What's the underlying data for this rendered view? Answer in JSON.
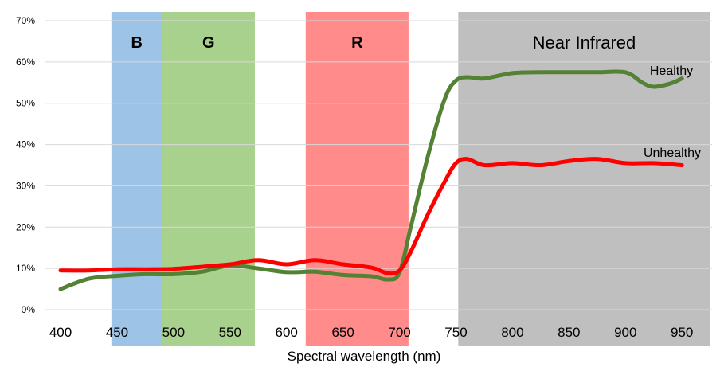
{
  "chart_data": {
    "type": "line",
    "title": "",
    "xlabel": "Spectral wavelength (nm)",
    "ylabel": "",
    "xlim": [
      380,
      965
    ],
    "ylim": [
      0,
      70
    ],
    "grid": true,
    "y_ticks": [
      "0%",
      "10%",
      "20%",
      "30%",
      "40%",
      "50%",
      "60%",
      "70%"
    ],
    "y_tick_values": [
      0,
      10,
      20,
      30,
      40,
      50,
      60,
      70
    ],
    "x_ticks": [
      "400",
      "450",
      "500",
      "550",
      "600",
      "650",
      "700",
      "750",
      "800",
      "850",
      "900",
      "950"
    ],
    "x_tick_values": [
      400,
      450,
      500,
      550,
      600,
      650,
      700,
      750,
      800,
      850,
      900,
      950
    ],
    "bands": [
      {
        "label": "B",
        "start": 445,
        "end": 490,
        "color": "#9dc3e6"
      },
      {
        "label": "G",
        "start": 490,
        "end": 572,
        "color": "#a9d18e"
      },
      {
        "label": "R",
        "start": 617,
        "end": 708,
        "color": "#ff8b8b"
      },
      {
        "label": "Near Infrared",
        "start": 752,
        "end": 975,
        "color": "#bfbfbf"
      }
    ],
    "series": [
      {
        "name": "Healthy",
        "color": "#548235",
        "x": [
          400,
          425,
          450,
          475,
          500,
          525,
          550,
          575,
          600,
          625,
          650,
          675,
          690,
          700,
          710,
          725,
          740,
          750,
          760,
          775,
          800,
          825,
          850,
          875,
          900,
          915,
          925,
          940,
          950
        ],
        "y": [
          5,
          7.5,
          8.2,
          8.6,
          8.6,
          9.2,
          10.7,
          10,
          9.1,
          9.2,
          8.4,
          8.1,
          7.3,
          9,
          20,
          37,
          51,
          55.5,
          56.3,
          56,
          57.3,
          57.5,
          57.5,
          57.5,
          57.5,
          55,
          54,
          54.8,
          56
        ]
      },
      {
        "name": "Unhealthy",
        "color": "#ff0000",
        "x": [
          400,
          425,
          450,
          475,
          500,
          525,
          550,
          575,
          600,
          625,
          650,
          675,
          690,
          700,
          710,
          725,
          740,
          750,
          760,
          775,
          800,
          825,
          850,
          875,
          900,
          925,
          950
        ],
        "y": [
          9.5,
          9.5,
          9.8,
          9.8,
          9.9,
          10.4,
          11,
          12,
          11,
          12,
          11,
          10.2,
          8.8,
          9.5,
          14,
          23,
          31,
          35.5,
          36.5,
          35,
          35.5,
          35,
          36,
          36.5,
          35.5,
          35.5,
          35
        ]
      }
    ]
  }
}
